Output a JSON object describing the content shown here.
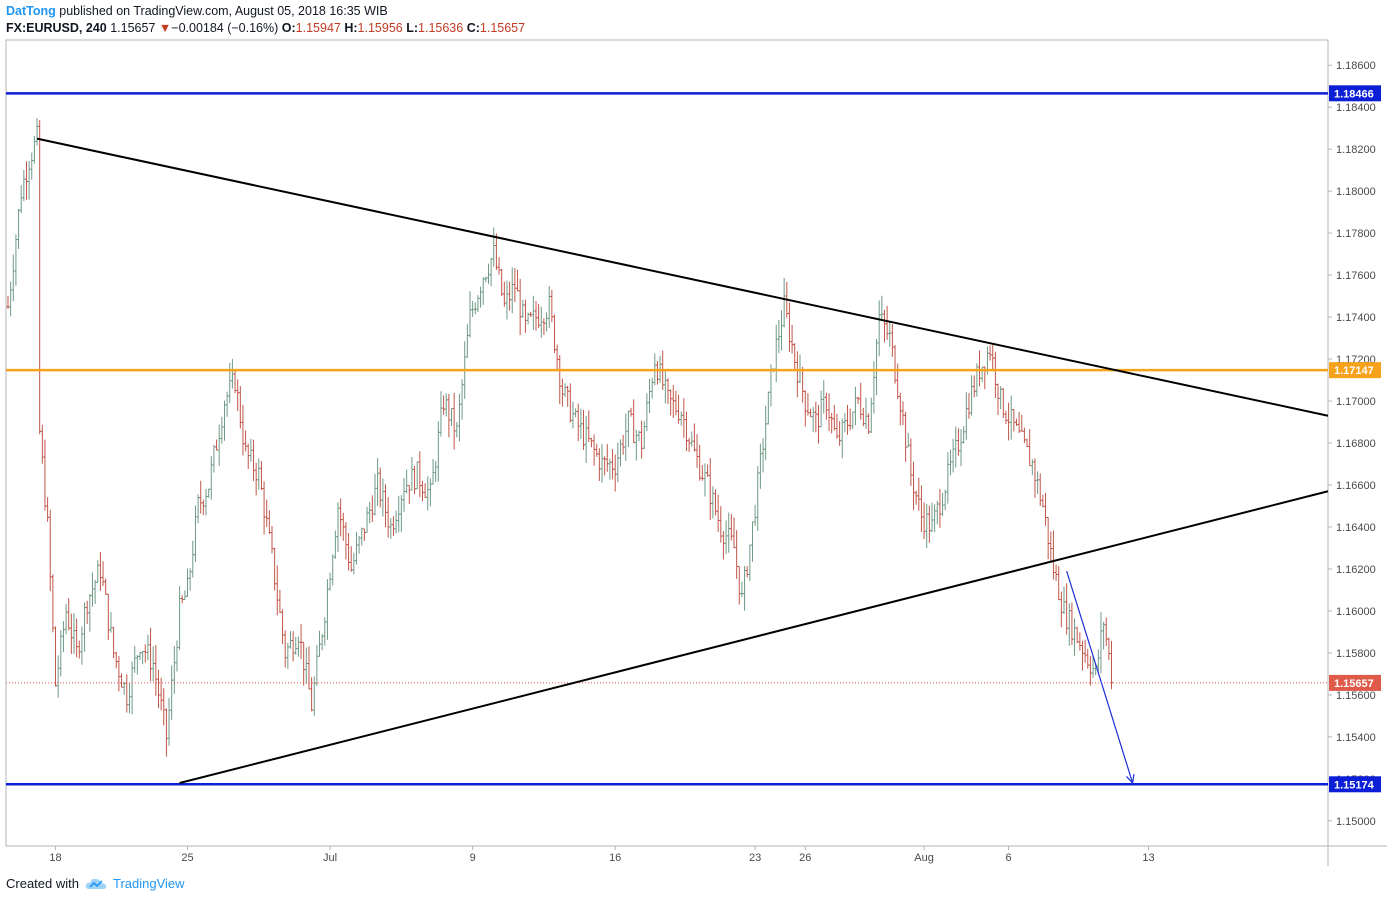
{
  "header": {
    "author": "DatTong",
    "published": " published on TradingView.com, August 05, 2018 16:35 WIB",
    "symbol": "FX:EURUSD, 240",
    "last": "1.15657",
    "change_arrow": "▼",
    "change": "−0.00184 (−0.16%)",
    "o_label": "O:",
    "o_value": "1.15947",
    "h_label": "H:",
    "h_value": "1.15956",
    "l_label": "L:",
    "l_value": "1.15636",
    "c_label": "C:",
    "c_value": "1.15657"
  },
  "footer": {
    "created_with": "Created with",
    "brand": "TradingView",
    "icon": "tradingview-cloud-icon"
  },
  "colors": {
    "up": "#6e9a86",
    "down": "#c0564a",
    "blue": "#0d1fd6",
    "orange": "#f7a21b",
    "trend": "#000000",
    "arrow": "#1f2fd6",
    "current": "#e05a4a"
  },
  "chart_data": {
    "type": "candlestick",
    "title": "FX:EURUSD, 240",
    "ylim": [
      1.1488,
      1.1872
    ],
    "y_ticks": [
      "1.18600",
      "1.18400",
      "1.18200",
      "1.18000",
      "1.17800",
      "1.17600",
      "1.17400",
      "1.17200",
      "1.17000",
      "1.16800",
      "1.16600",
      "1.16400",
      "1.16200",
      "1.16000",
      "1.15800",
      "1.15600",
      "1.15400",
      "1.15200",
      "1.15000"
    ],
    "x_ticks": [
      "18",
      "25",
      "Jul",
      "9",
      "16",
      "23",
      "26",
      "Aug",
      "6",
      "13"
    ],
    "x_tick_index": [
      18,
      68,
      122,
      176,
      230,
      283,
      302,
      347,
      379,
      432
    ],
    "horizontal_levels": [
      {
        "name": "resistance-high",
        "value": 1.18466,
        "label": "1.18466",
        "color": "#0d1fd6"
      },
      {
        "name": "pivot",
        "value": 1.17147,
        "label": "1.17147",
        "color": "#f7a21b"
      },
      {
        "name": "support-low",
        "value": 1.15174,
        "label": "1.15174",
        "color": "#0d1fd6"
      }
    ],
    "current_price": {
      "value": 1.15657,
      "label": "1.15657"
    },
    "trendlines": [
      {
        "name": "descending-trendline",
        "from": {
          "i": 11,
          "y": 1.1825
        },
        "to": {
          "i": 500,
          "y": 1.1693
        }
      },
      {
        "name": "ascending-trendline",
        "from": {
          "i": 65,
          "y": 1.1518
        },
        "to": {
          "i": 500,
          "y": 1.1657
        }
      }
    ],
    "projection_arrow": {
      "from": {
        "i": 401,
        "y": 1.1619
      },
      "to": {
        "i": 426,
        "y": 1.1518
      }
    },
    "series_points": [
      [
        0,
        1.1745
      ],
      [
        5,
        1.18
      ],
      [
        8,
        1.1815
      ],
      [
        11,
        1.1825
      ],
      [
        12,
        1.1685
      ],
      [
        15,
        1.164
      ],
      [
        18,
        1.1565
      ],
      [
        22,
        1.16
      ],
      [
        26,
        1.158
      ],
      [
        30,
        1.1605
      ],
      [
        35,
        1.162
      ],
      [
        40,
        1.158
      ],
      [
        45,
        1.156
      ],
      [
        50,
        1.1585
      ],
      [
        55,
        1.1575
      ],
      [
        60,
        1.154
      ],
      [
        65,
        1.16
      ],
      [
        68,
        1.161
      ],
      [
        72,
        1.165
      ],
      [
        76,
        1.166
      ],
      [
        82,
        1.17
      ],
      [
        86,
        1.171
      ],
      [
        90,
        1.1675
      ],
      [
        95,
        1.1665
      ],
      [
        100,
        1.1625
      ],
      [
        105,
        1.158
      ],
      [
        110,
        1.159
      ],
      [
        115,
        1.1555
      ],
      [
        120,
        1.16
      ],
      [
        125,
        1.165
      ],
      [
        130,
        1.162
      ],
      [
        135,
        1.164
      ],
      [
        140,
        1.166
      ],
      [
        145,
        1.164
      ],
      [
        150,
        1.166
      ],
      [
        155,
        1.1665
      ],
      [
        160,
        1.1655
      ],
      [
        165,
        1.17
      ],
      [
        170,
        1.1685
      ],
      [
        175,
        1.174
      ],
      [
        180,
        1.176
      ],
      [
        184,
        1.177
      ],
      [
        188,
        1.1745
      ],
      [
        192,
        1.1755
      ],
      [
        196,
        1.1735
      ],
      [
        200,
        1.174
      ],
      [
        205,
        1.1745
      ],
      [
        210,
        1.1705
      ],
      [
        215,
        1.169
      ],
      [
        220,
        1.168
      ],
      [
        225,
        1.167
      ],
      [
        230,
        1.167
      ],
      [
        235,
        1.169
      ],
      [
        240,
        1.168
      ],
      [
        245,
        1.172
      ],
      [
        250,
        1.17
      ],
      [
        255,
        1.1695
      ],
      [
        260,
        1.1675
      ],
      [
        265,
        1.166
      ],
      [
        270,
        1.164
      ],
      [
        275,
        1.163
      ],
      [
        278,
        1.1605
      ],
      [
        282,
        1.164
      ],
      [
        286,
        1.168
      ],
      [
        290,
        1.172
      ],
      [
        294,
        1.1745
      ],
      [
        298,
        1.172
      ],
      [
        302,
        1.17
      ],
      [
        306,
        1.169
      ],
      [
        310,
        1.17
      ],
      [
        314,
        1.168
      ],
      [
        318,
        1.169
      ],
      [
        322,
        1.17
      ],
      [
        326,
        1.169
      ],
      [
        330,
        1.174
      ],
      [
        334,
        1.173
      ],
      [
        338,
        1.17
      ],
      [
        342,
        1.1665
      ],
      [
        346,
        1.1645
      ],
      [
        350,
        1.164
      ],
      [
        355,
        1.166
      ],
      [
        360,
        1.168
      ],
      [
        364,
        1.17
      ],
      [
        368,
        1.1715
      ],
      [
        372,
        1.1725
      ],
      [
        376,
        1.17
      ],
      [
        380,
        1.169
      ],
      [
        384,
        1.168
      ],
      [
        388,
        1.167
      ],
      [
        392,
        1.165
      ],
      [
        396,
        1.162
      ],
      [
        400,
        1.16
      ],
      [
        404,
        1.159
      ],
      [
        408,
        1.158
      ],
      [
        412,
        1.157
      ],
      [
        415,
        1.1595
      ],
      [
        418,
        1.157
      ]
    ]
  }
}
